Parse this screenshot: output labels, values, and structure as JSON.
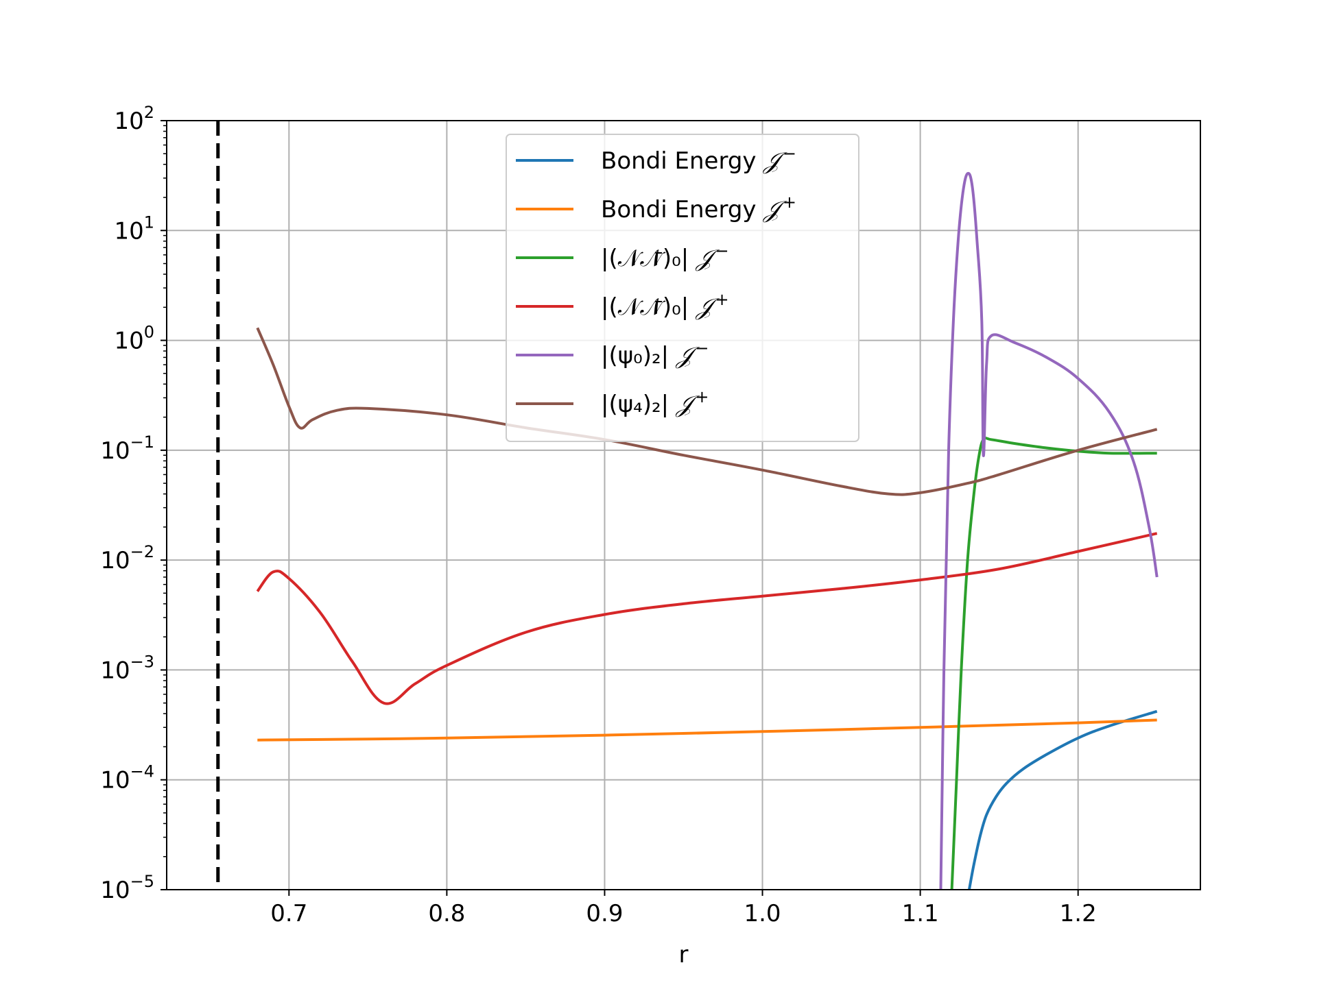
{
  "chart_data": {
    "type": "line",
    "xlabel": "r",
    "ylabel": "",
    "title": "",
    "xscale": "linear",
    "yscale": "log",
    "xlim": [
      0.6225,
      1.2775
    ],
    "ylim": [
      1e-05,
      100
    ],
    "xticks": [
      0.7,
      0.8,
      0.9,
      1.0,
      1.1,
      1.2
    ],
    "xtick_labels": [
      "0.7",
      "0.8",
      "0.9",
      "1.0",
      "1.1",
      "1.2"
    ],
    "ytick_exponents": [
      -5,
      -4,
      -3,
      -2,
      -1,
      0,
      1,
      2
    ],
    "ytick_base": "10",
    "grid": true,
    "legend_position": "upper-center",
    "vertical_line": {
      "x": 0.655,
      "style": "dashed",
      "color": "#000000"
    },
    "series": [
      {
        "name": "Bondi Energy 𝒥⁻",
        "label_main": "Bondi Energy ",
        "label_script": "𝒥",
        "label_sup": "−",
        "color": "#1f77b4",
        "x": [
          1.131,
          1.134,
          1.138,
          1.142,
          1.148,
          1.155,
          1.165,
          1.18,
          1.2,
          1.22,
          1.25
        ],
        "y": [
          1e-05,
          1.7e-05,
          3.1e-05,
          4.8e-05,
          7e-05,
          9.4e-05,
          0.000125,
          0.00017,
          0.00024,
          0.00031,
          0.00042
        ]
      },
      {
        "name": "Bondi Energy 𝒥⁺",
        "label_main": "Bondi Energy ",
        "label_script": "𝒥",
        "label_sup": "+",
        "color": "#ff7f0e",
        "x": [
          0.68,
          0.75,
          0.8,
          0.9,
          1.0,
          1.1,
          1.2,
          1.25
        ],
        "y": [
          0.00023,
          0.000235,
          0.00024,
          0.000255,
          0.000275,
          0.0003,
          0.00033,
          0.00035
        ]
      },
      {
        "name": "|(𝒩𝒩̄)₀| 𝒥⁻",
        "label_main": "|(𝒩𝒩̄)₀| ",
        "label_script": "𝒥",
        "label_sup": "−",
        "color": "#2ca02c",
        "x": [
          1.12,
          1.123,
          1.126,
          1.13,
          1.134,
          1.137,
          1.14,
          1.145,
          1.16,
          1.18,
          1.2,
          1.22,
          1.25
        ],
        "y": [
          1e-05,
          0.0001,
          0.001,
          0.01,
          0.04,
          0.085,
          0.125,
          0.125,
          0.115,
          0.105,
          0.098,
          0.094,
          0.094
        ]
      },
      {
        "name": "|(𝒩𝒩̄)₀| 𝒥⁺",
        "label_main": "|(𝒩𝒩̄)₀| ",
        "label_script": "𝒥",
        "label_sup": "+",
        "color": "#d62728",
        "x": [
          0.68,
          0.69,
          0.7,
          0.72,
          0.74,
          0.76,
          0.78,
          0.8,
          0.85,
          0.9,
          0.95,
          1.0,
          1.05,
          1.1,
          1.15,
          1.2,
          1.25
        ],
        "y": [
          0.0052,
          0.0078,
          0.0068,
          0.0033,
          0.0012,
          0.0005,
          0.00075,
          0.0011,
          0.0022,
          0.0032,
          0.004,
          0.0047,
          0.0055,
          0.0066,
          0.0083,
          0.012,
          0.0175
        ]
      },
      {
        "name": "|(ψ₀)₂| 𝒥⁻",
        "label_main": "|(ψ₀)₂| ",
        "label_script": "𝒥",
        "label_sup": "−",
        "color": "#9467bd",
        "x": [
          1.113,
          1.115,
          1.118,
          1.121,
          1.124,
          1.127,
          1.13,
          1.133,
          1.136,
          1.139,
          1.14,
          1.142,
          1.145,
          1.16,
          1.18,
          1.2,
          1.22,
          1.235,
          1.245,
          1.25
        ],
        "y": [
          1e-05,
          0.001,
          0.1,
          1.5,
          8,
          22,
          33,
          25,
          8,
          1.5,
          0.09,
          0.6,
          1.1,
          0.95,
          0.7,
          0.45,
          0.22,
          0.08,
          0.02,
          0.007
        ]
      },
      {
        "name": "|(ψ₄)₂| 𝒥⁺",
        "label_main": "|(ψ₄)₂| ",
        "label_script": "𝒥",
        "label_sup": "+",
        "color": "#8c564b",
        "x": [
          0.68,
          0.69,
          0.7,
          0.707,
          0.715,
          0.73,
          0.75,
          0.8,
          0.85,
          0.9,
          0.95,
          1.0,
          1.05,
          1.08,
          1.1,
          1.13,
          1.15,
          1.2,
          1.25
        ],
        "y": [
          1.3,
          0.6,
          0.25,
          0.16,
          0.19,
          0.23,
          0.24,
          0.21,
          0.16,
          0.125,
          0.09,
          0.066,
          0.047,
          0.04,
          0.041,
          0.05,
          0.06,
          0.1,
          0.155
        ]
      }
    ]
  }
}
